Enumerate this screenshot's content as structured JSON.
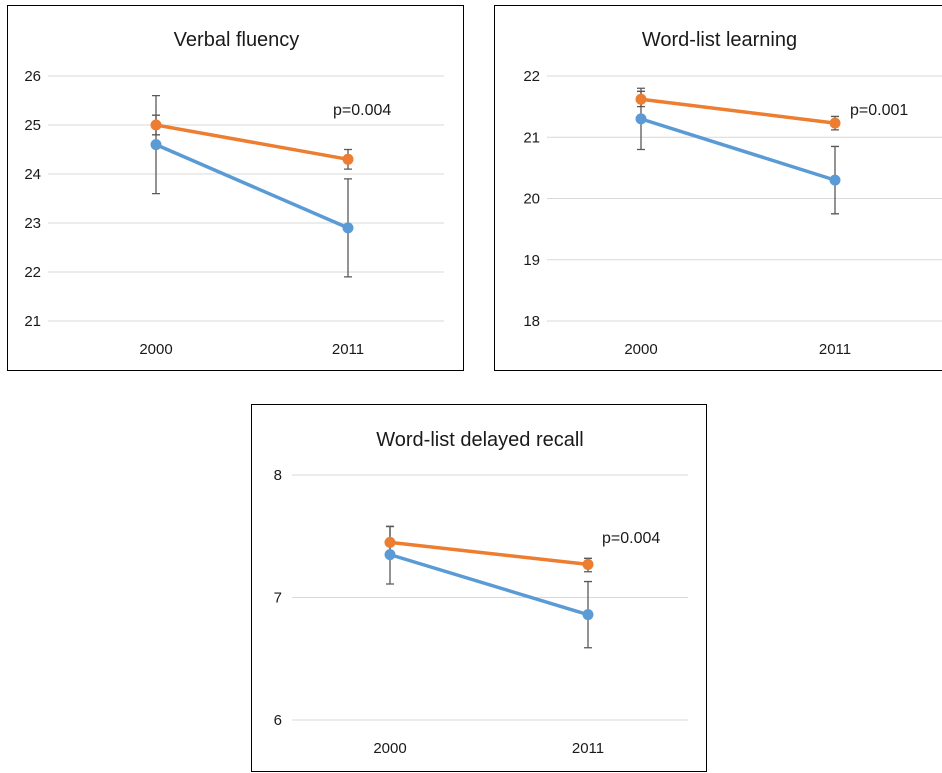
{
  "chart_data": [
    {
      "type": "line",
      "title": "Verbal fluency",
      "categories": [
        "2000",
        "2011"
      ],
      "ylim": [
        21,
        26
      ],
      "yticks": [
        21,
        22,
        23,
        24,
        25,
        26
      ],
      "grid": true,
      "series": [
        {
          "color": "#ED7D31",
          "values": [
            25.0,
            24.3
          ],
          "error_low": [
            24.8,
            24.1
          ],
          "error_high": [
            25.2,
            24.5
          ]
        },
        {
          "color": "#5B9BD5",
          "values": [
            24.6,
            22.9
          ],
          "error_low": [
            23.6,
            21.9
          ],
          "error_high": [
            25.6,
            23.9
          ]
        }
      ],
      "annotation": "p=0.004"
    },
    {
      "type": "line",
      "title": "Word-list learning",
      "categories": [
        "2000",
        "2011"
      ],
      "ylim": [
        18,
        22
      ],
      "yticks": [
        18,
        19,
        20,
        21,
        22
      ],
      "grid": true,
      "series": [
        {
          "color": "#ED7D31",
          "values": [
            21.62,
            21.23
          ],
          "error_low": [
            21.5,
            21.12
          ],
          "error_high": [
            21.75,
            21.34
          ]
        },
        {
          "color": "#5B9BD5",
          "values": [
            21.3,
            20.3
          ],
          "error_low": [
            20.8,
            19.75
          ],
          "error_high": [
            21.8,
            20.85
          ]
        }
      ],
      "annotation": "p=0.001"
    },
    {
      "type": "line",
      "title": "Word-list delayed recall",
      "categories": [
        "2000",
        "2011"
      ],
      "ylim": [
        6,
        8
      ],
      "yticks": [
        6,
        7,
        8
      ],
      "grid": true,
      "series": [
        {
          "color": "#ED7D31",
          "values": [
            7.45,
            7.27
          ],
          "error_low": [
            7.33,
            7.21
          ],
          "error_high": [
            7.58,
            7.32
          ]
        },
        {
          "color": "#5B9BD5",
          "values": [
            7.35,
            6.86
          ],
          "error_low": [
            7.11,
            6.59
          ],
          "error_high": [
            7.58,
            7.13
          ]
        }
      ],
      "annotation": "p=0.004"
    }
  ]
}
